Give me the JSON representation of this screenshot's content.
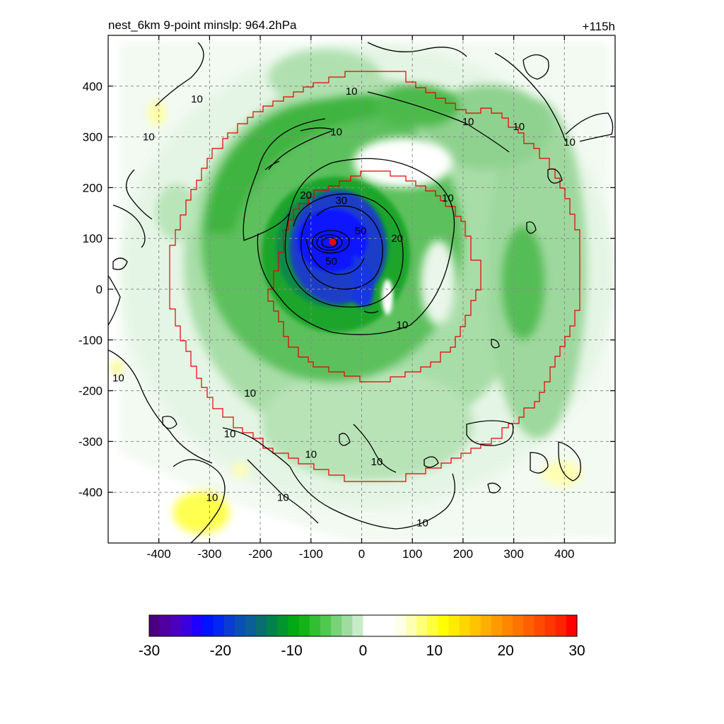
{
  "chart_data": {
    "type": "heatmap",
    "title_left": "nest_6km  9-point minslp: 964.2hPa",
    "title_right": "+115h",
    "xlabel": "",
    "ylabel": "",
    "xlim": [
      -500,
      500
    ],
    "ylim": [
      -500,
      500
    ],
    "x_ticks": [
      -400,
      -300,
      -200,
      -100,
      0,
      100,
      200,
      300,
      400
    ],
    "y_ticks": [
      400,
      300,
      200,
      100,
      0,
      -100,
      -200,
      -300,
      -400
    ],
    "grid": true,
    "storm_center": {
      "x": -57,
      "y": 93
    },
    "contour_labels": [
      {
        "text": "10",
        "x": -325,
        "y": 375
      },
      {
        "text": "10",
        "x": -420,
        "y": 300
      },
      {
        "text": "10",
        "x": -20,
        "y": 390
      },
      {
        "text": "10",
        "x": -50,
        "y": 310
      },
      {
        "text": "10",
        "x": 210,
        "y": 330
      },
      {
        "text": "10",
        "x": 310,
        "y": 320
      },
      {
        "text": "10",
        "x": 410,
        "y": 290
      },
      {
        "text": "10",
        "x": 170,
        "y": 180
      },
      {
        "text": "20",
        "x": -110,
        "y": 185
      },
      {
        "text": "30",
        "x": -40,
        "y": 175
      },
      {
        "text": "50",
        "x": -2,
        "y": 115
      },
      {
        "text": "20",
        "x": 70,
        "y": 100
      },
      {
        "text": "50",
        "x": -60,
        "y": 55
      },
      {
        "text": "10",
        "x": 80,
        "y": -70
      },
      {
        "text": "10",
        "x": -480,
        "y": -175
      },
      {
        "text": "10",
        "x": -220,
        "y": -205
      },
      {
        "text": "10",
        "x": -260,
        "y": -285
      },
      {
        "text": "10",
        "x": -100,
        "y": -325
      },
      {
        "text": "10",
        "x": 30,
        "y": -340
      },
      {
        "text": "10",
        "x": -155,
        "y": -410
      },
      {
        "text": "10",
        "x": -295,
        "y": -410
      },
      {
        "text": "10",
        "x": 120,
        "y": -460
      }
    ],
    "colorbar": {
      "min": -30,
      "max": 30,
      "labels": [
        "-30",
        "-20",
        "-10",
        "0",
        "10",
        "20",
        "30"
      ],
      "colors": [
        "#4b0082",
        "#5000a0",
        "#4b00c0",
        "#3a00e0",
        "#1e00ff",
        "#0014ff",
        "#0028f0",
        "#0a3cd2",
        "#0a50b4",
        "#0a5f96",
        "#0a6e6e",
        "#00824b",
        "#00962d",
        "#00aa14",
        "#14b414",
        "#32be32",
        "#50c850",
        "#78d278",
        "#a0dca0",
        "#c8ebc8",
        "#ffffff",
        "#ffffff",
        "#ffffff",
        "#ffffe6",
        "#ffffb4",
        "#ffff78",
        "#ffff3c",
        "#ffff00",
        "#ffeb00",
        "#ffd700",
        "#ffc300",
        "#ffaf00",
        "#ff9b00",
        "#ff8700",
        "#ff7300",
        "#ff5f00",
        "#ff4b00",
        "#ff3700",
        "#ff2300",
        "#ff0000"
      ]
    }
  }
}
